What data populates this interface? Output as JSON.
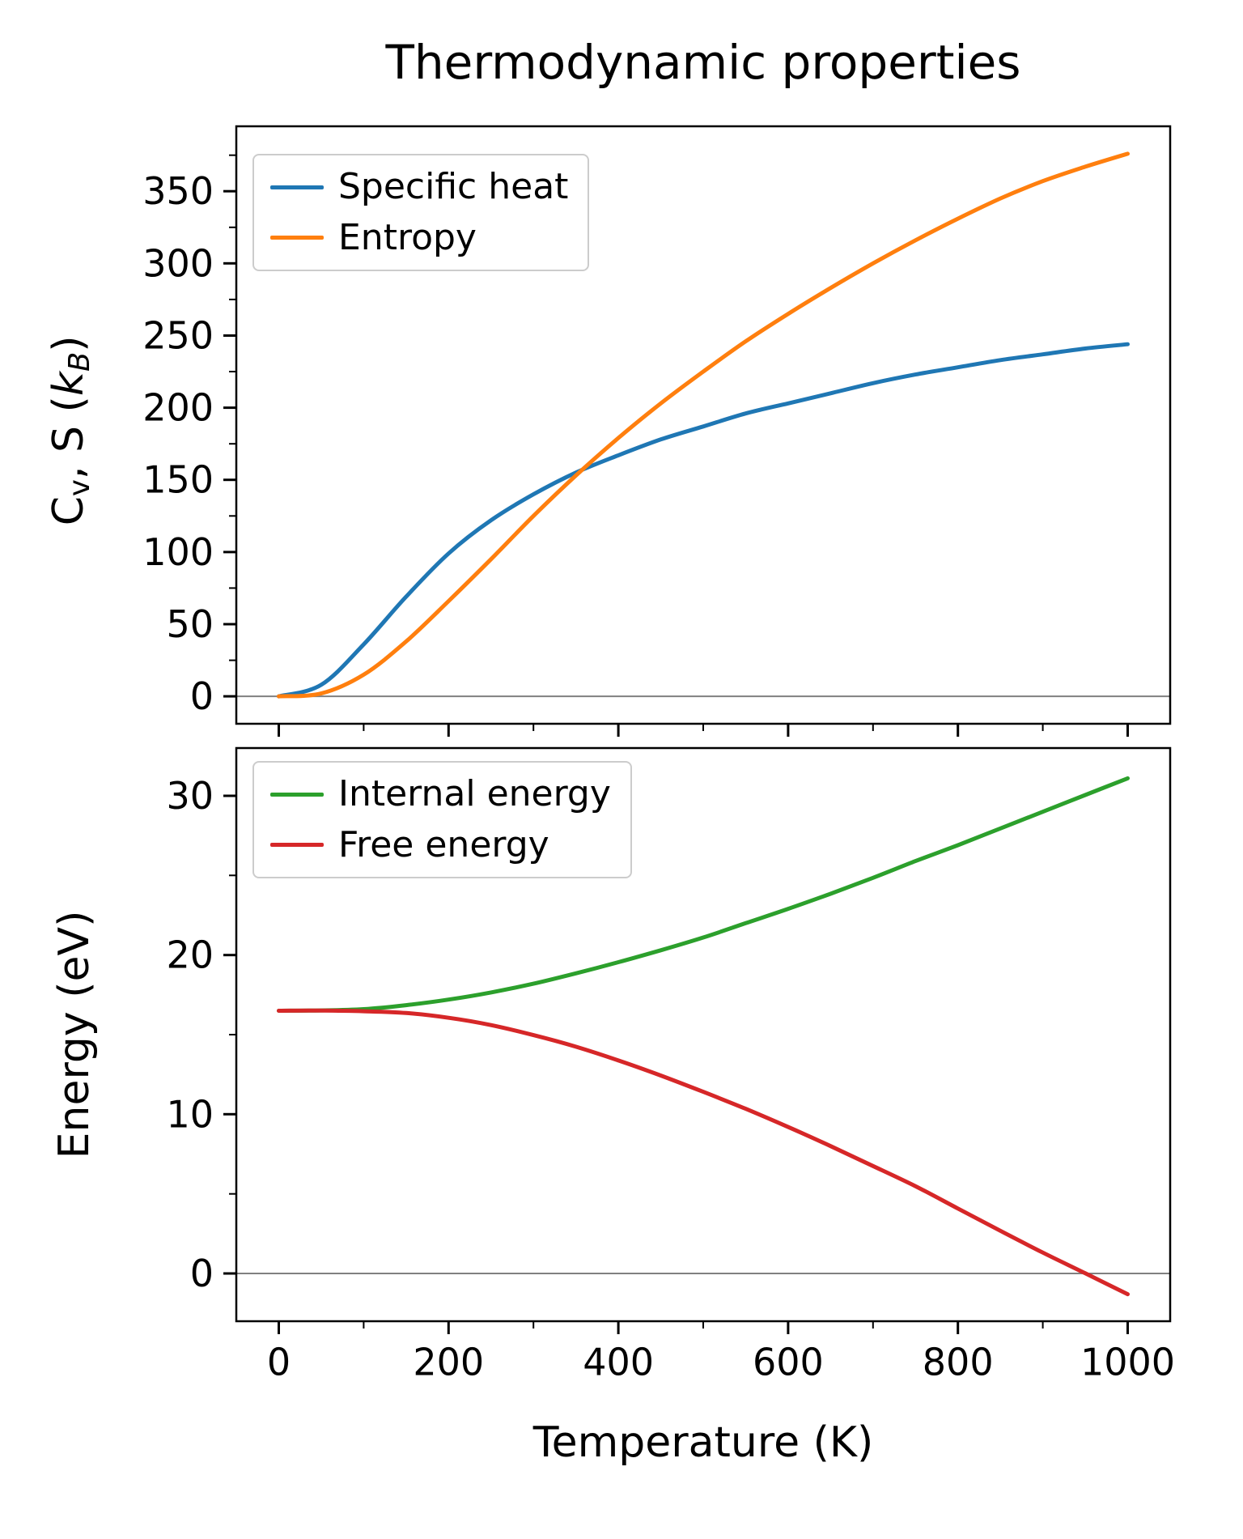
{
  "figure": {
    "title": "Thermodynamic properties",
    "xlabel": "Temperature (K)",
    "background": "#ffffff",
    "spine_color": "#000000",
    "zero_line_color": "#808080"
  },
  "chart_data": [
    {
      "type": "line",
      "title": "Thermodynamic properties",
      "xlabel": "Temperature (K)",
      "ylabel": "Cv, S (kB)",
      "ylabel_segments": [
        {
          "t": "C"
        },
        {
          "t": "v",
          "sub": true
        },
        {
          "t": ", S ("
        },
        {
          "t": "k",
          "italic": true
        },
        {
          "t": "B",
          "sub": true,
          "italic": true
        },
        {
          "t": ")"
        }
      ],
      "xlim": [
        -50,
        1050
      ],
      "ylim": [
        -19,
        395
      ],
      "xticks": [
        0,
        200,
        400,
        600,
        800,
        1000
      ],
      "yticks": [
        0,
        50,
        100,
        150,
        200,
        250,
        300,
        350
      ],
      "x_minor_step": 100,
      "y_minor_step": 25,
      "show_x_tick_labels": false,
      "zero_line": true,
      "grid": false,
      "legend_position": "upper-left",
      "x": [
        0,
        50,
        100,
        150,
        200,
        250,
        300,
        350,
        400,
        450,
        500,
        550,
        600,
        650,
        700,
        750,
        800,
        850,
        900,
        950,
        1000
      ],
      "series": [
        {
          "name": "Specific heat",
          "color": "#1f77b4",
          "values": [
            0,
            8,
            36,
            69,
            99,
            122,
            140,
            155,
            167,
            178,
            187,
            196,
            203,
            210,
            217,
            223,
            228,
            233,
            237,
            241,
            244
          ]
        },
        {
          "name": "Entropy",
          "color": "#ff7f0e",
          "values": [
            0,
            2,
            15,
            38,
            66,
            95,
            125,
            153,
            179,
            203,
            225,
            246,
            265,
            283,
            300,
            316,
            331,
            345,
            357,
            367,
            376
          ]
        }
      ]
    },
    {
      "type": "line",
      "title": "",
      "xlabel": "Temperature (K)",
      "ylabel": "Energy (eV)",
      "ylabel_segments": [
        {
          "t": "Energy (eV)"
        }
      ],
      "xlim": [
        -50,
        1050
      ],
      "ylim": [
        -3,
        33
      ],
      "xticks": [
        0,
        200,
        400,
        600,
        800,
        1000
      ],
      "yticks": [
        0,
        10,
        20,
        30
      ],
      "x_minor_step": 100,
      "y_minor_step": 5,
      "show_x_tick_labels": true,
      "zero_line": true,
      "grid": false,
      "legend_position": "upper-left",
      "x": [
        0,
        50,
        100,
        150,
        200,
        250,
        300,
        350,
        400,
        450,
        500,
        550,
        600,
        650,
        700,
        750,
        800,
        850,
        900,
        950,
        1000
      ],
      "series": [
        {
          "name": "Internal energy",
          "color": "#2ca02c",
          "values": [
            16.5,
            16.52,
            16.6,
            16.85,
            17.2,
            17.65,
            18.2,
            18.85,
            19.55,
            20.3,
            21.1,
            22.0,
            22.9,
            23.85,
            24.85,
            25.9,
            26.9,
            27.95,
            29.0,
            30.05,
            31.1
          ]
        },
        {
          "name": "Free energy",
          "color": "#d62728",
          "values": [
            16.5,
            16.51,
            16.47,
            16.36,
            16.06,
            15.6,
            14.97,
            14.24,
            13.38,
            12.43,
            11.41,
            10.34,
            9.2,
            8.0,
            6.75,
            5.48,
            4.08,
            2.68,
            1.31,
            0.01,
            -1.3
          ]
        }
      ]
    }
  ]
}
